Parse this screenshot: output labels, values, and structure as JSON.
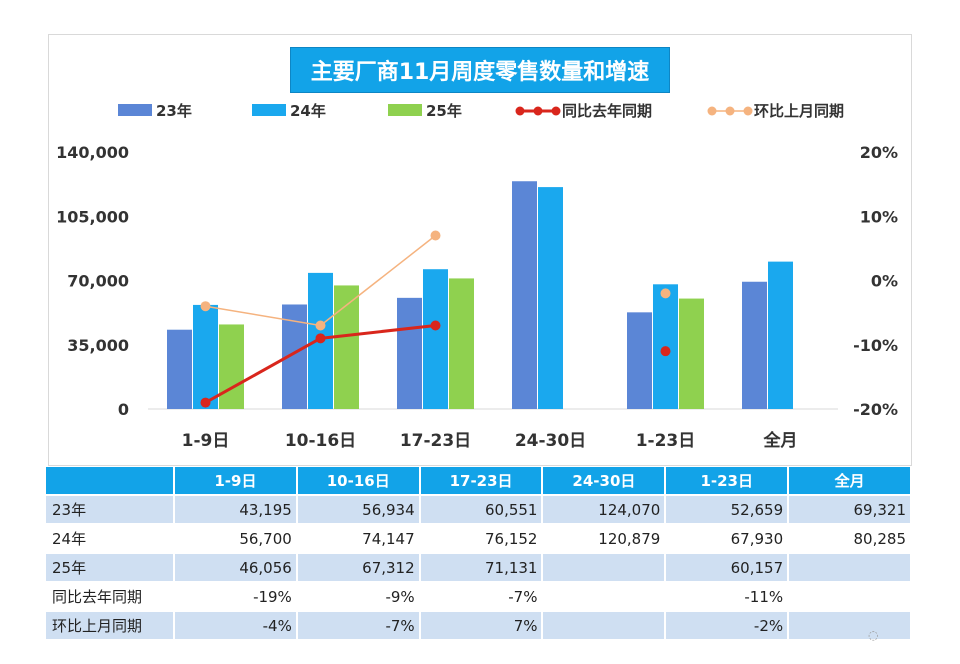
{
  "chart_data": {
    "type": "bar",
    "title": "主要厂商11月周度零售数量和增速",
    "categories": [
      "1-9日",
      "10-16日",
      "17-23日",
      "24-30日",
      "1-23日",
      "全月"
    ],
    "series": [
      {
        "name": "23年",
        "color": "#5b86d6",
        "values": [
          43195,
          56934,
          60551,
          124070,
          52659,
          69321
        ]
      },
      {
        "name": "24年",
        "color": "#1aa8ee",
        "values": [
          56700,
          74147,
          76152,
          120879,
          67930,
          80285
        ]
      },
      {
        "name": "25年",
        "color": "#8fd14f",
        "values": [
          46056,
          67312,
          71131,
          null,
          60157,
          null
        ]
      }
    ],
    "line_series": [
      {
        "name": "同比去年同期",
        "color": "#d9261c",
        "values": [
          -19,
          -9,
          -7,
          null,
          -11,
          null
        ]
      },
      {
        "name": "环比上月同期",
        "color": "#f5b37f",
        "values": [
          -4,
          -7,
          7,
          null,
          -2,
          null
        ]
      }
    ],
    "ylim": [
      0,
      140000
    ],
    "yticks": [
      "0",
      "35,000",
      "70,000",
      "105,000",
      "140,000"
    ],
    "ytick_values": [
      0,
      35000,
      70000,
      105000,
      140000
    ],
    "y2lim": [
      -20,
      20
    ],
    "y2ticks": [
      "-20%",
      "-10%",
      "0%",
      "10%",
      "20%"
    ],
    "y2tick_values": [
      -20,
      -10,
      0,
      10,
      20
    ],
    "legend_position": "top"
  },
  "table": {
    "headers": [
      "1-9日",
      "10-16日",
      "17-23日",
      "24-30日",
      "1-23日",
      "全月"
    ],
    "rows": [
      {
        "label": "23年",
        "cells": [
          "43,195",
          "56,934",
          "60,551",
          "124,070",
          "52,659",
          "69,321"
        ]
      },
      {
        "label": "24年",
        "cells": [
          "56,700",
          "74,147",
          "76,152",
          "120,879",
          "67,930",
          "80,285"
        ]
      },
      {
        "label": "25年",
        "cells": [
          "46,056",
          "67,312",
          "71,131",
          "",
          "60,157",
          ""
        ]
      },
      {
        "label": "同比去年同期",
        "cells": [
          "-19%",
          "-9%",
          "-7%",
          "",
          "-11%",
          ""
        ]
      },
      {
        "label": "环比上月同期",
        "cells": [
          "-4%",
          "-7%",
          "7%",
          "",
          "-2%",
          ""
        ]
      }
    ]
  }
}
